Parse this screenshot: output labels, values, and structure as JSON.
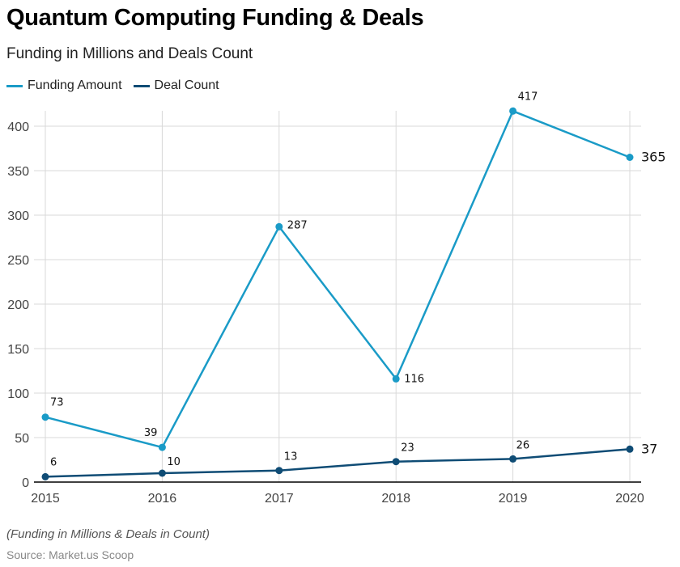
{
  "header": {
    "title": "Quantum Computing Funding & Deals",
    "subtitle": "Funding in Millions and Deals Count"
  },
  "footer": {
    "note": "(Funding in Millions & Deals in Count)",
    "source": "Source: Market.us Scoop"
  },
  "colors": {
    "funding": "#1a9bc7",
    "deals": "#0f4c75",
    "grid": "#d9d9d9",
    "axis": "#000000"
  },
  "chart_data": {
    "type": "line",
    "title": "Quantum Computing Funding & Deals",
    "subtitle": "Funding in Millions and Deals Count",
    "xlabel": "",
    "ylabel": "",
    "categories": [
      "2015",
      "2016",
      "2017",
      "2018",
      "2019",
      "2020"
    ],
    "ylim": [
      0,
      420
    ],
    "yticks": [
      0,
      50,
      100,
      150,
      200,
      250,
      300,
      350,
      400
    ],
    "grid": true,
    "legend_position": "top-left",
    "series": [
      {
        "name": "Funding Amount",
        "values": [
          73,
          39,
          287,
          116,
          417,
          365
        ]
      },
      {
        "name": "Deal Count",
        "values": [
          6,
          10,
          13,
          23,
          26,
          37
        ]
      }
    ]
  }
}
